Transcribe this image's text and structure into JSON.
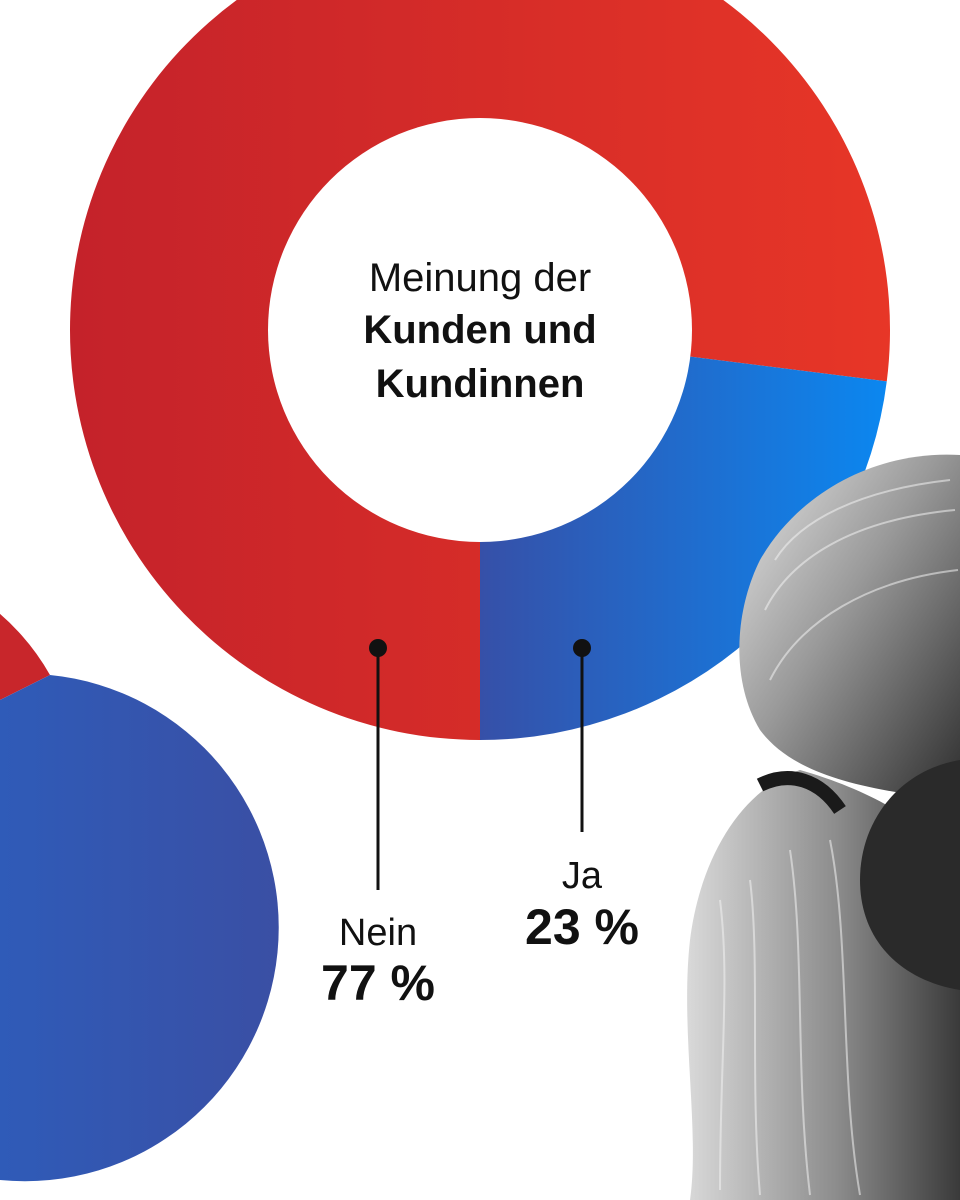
{
  "chart_data": {
    "type": "pie",
    "title": "Meinung der Kunden und Kundinnen",
    "center_text": {
      "line1": "Meinung der",
      "line2": "Kunden und",
      "line3": "Kundinnen"
    },
    "categories": [
      "Nein",
      "Ja"
    ],
    "values": [
      77,
      23
    ],
    "data_labels": [
      "77 %",
      "23 %"
    ],
    "colors": {
      "nein_start": "#c4222a",
      "nein_end": "#e73627",
      "ja_start": "#3650a8",
      "ja_end": "#0b87f0"
    },
    "style": "donut"
  }
}
